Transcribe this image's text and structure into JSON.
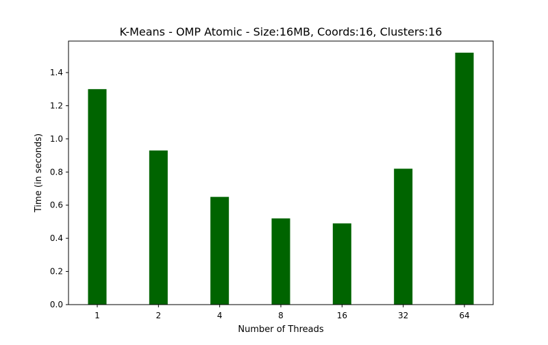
{
  "chart_data": {
    "type": "bar",
    "title": "K-Means - OMP Atomic - Size:16MB, Coords:16, Clusters:16",
    "xlabel": "Number of Threads",
    "ylabel": "Time (in seconds)",
    "categories": [
      "1",
      "2",
      "4",
      "8",
      "16",
      "32",
      "64"
    ],
    "values": [
      1.3,
      0.93,
      0.65,
      0.52,
      0.49,
      0.82,
      1.52
    ],
    "ylim": [
      0,
      1.59
    ],
    "yticks": [
      "0.0",
      "0.2",
      "0.4",
      "0.6",
      "0.8",
      "1.0",
      "1.2",
      "1.4"
    ],
    "bar_color": "#006400",
    "grid": false,
    "legend": "none"
  }
}
